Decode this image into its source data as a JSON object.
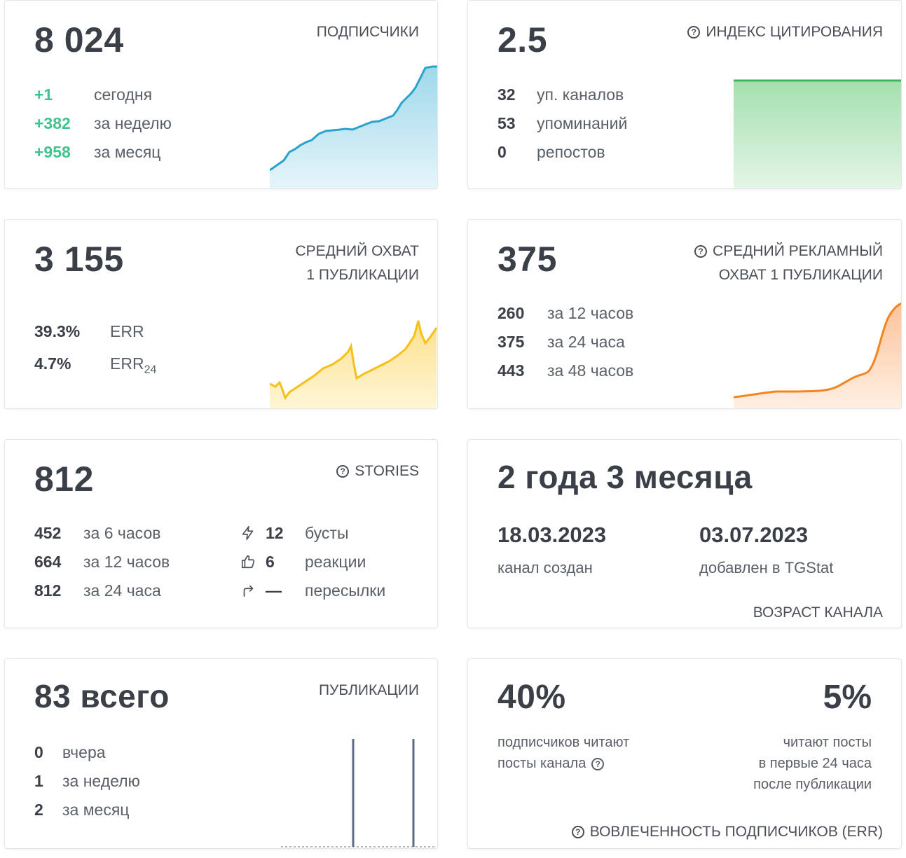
{
  "subscribers": {
    "value": "8 024",
    "title": "ПОДПИСЧИКИ",
    "rows": [
      {
        "num": "+1",
        "label": "сегодня"
      },
      {
        "num": "+382",
        "label": "за неделю"
      },
      {
        "num": "+958",
        "label": "за месяц"
      }
    ],
    "color": "#2aa3cc"
  },
  "citation": {
    "value": "2.5",
    "title": "ИНДЕКС ЦИТИРОВАНИЯ",
    "rows": [
      {
        "num": "32",
        "label": "уп. каналов"
      },
      {
        "num": "53",
        "label": "упоминаний"
      },
      {
        "num": "0",
        "label": "репостов"
      }
    ],
    "color": "#3cb55a"
  },
  "reach": {
    "value": "3 155",
    "title_line1": "СРЕДНИЙ ОХВАТ",
    "title_line2": "1 ПУБЛИКАЦИИ",
    "rows": [
      {
        "num": "39.3%",
        "label": "ERR",
        "sub": ""
      },
      {
        "num": "4.7%",
        "label": "ERR",
        "sub": "24"
      }
    ],
    "color": "#f5c017"
  },
  "ad_reach": {
    "value": "375",
    "title_line1": "СРЕДНИЙ РЕКЛАМНЫЙ",
    "title_line2": "ОХВАТ 1 ПУБЛИКАЦИИ",
    "rows": [
      {
        "num": "260",
        "label": "за 12 часов"
      },
      {
        "num": "375",
        "label": "за 24 часа"
      },
      {
        "num": "443",
        "label": "за 48 часов"
      }
    ],
    "color": "#f5841f"
  },
  "stories": {
    "value": "812",
    "title": "STORIES",
    "rows": [
      {
        "num": "452",
        "label": "за 6 часов"
      },
      {
        "num": "664",
        "label": "за 12 часов"
      },
      {
        "num": "812",
        "label": "за 24 часа"
      }
    ],
    "extras": [
      {
        "icon": "lightning-icon",
        "num": "12",
        "label": "бусты"
      },
      {
        "icon": "thumbs-up-icon",
        "num": "6",
        "label": "реакции"
      },
      {
        "icon": "share-arrow-icon",
        "num": "—",
        "label": "пересылки"
      }
    ]
  },
  "age": {
    "value": "2 года 3 месяца",
    "created_date": "18.03.2023",
    "created_label": "канал создан",
    "added_date": "03.07.2023",
    "added_label": "добавлен в TGStat",
    "title": "ВОЗРАСТ КАНАЛА"
  },
  "posts": {
    "value": "83 всего",
    "title": "ПУБЛИКАЦИИ",
    "rows": [
      {
        "num": "0",
        "label": "вчера"
      },
      {
        "num": "1",
        "label": "за неделю"
      },
      {
        "num": "2",
        "label": "за месяц"
      }
    ],
    "color": "#5c6b80"
  },
  "engagement": {
    "left_value": "40%",
    "left_line1": "подписчиков читают",
    "left_line2": "посты канала",
    "right_value": "5%",
    "right_line1": "читают посты",
    "right_line2": "в первые 24 часа",
    "right_line3": "после публикации",
    "title": "ВОВЛЕЧЕННОСТЬ ПОДПИСЧИКОВ (ERR)"
  }
}
